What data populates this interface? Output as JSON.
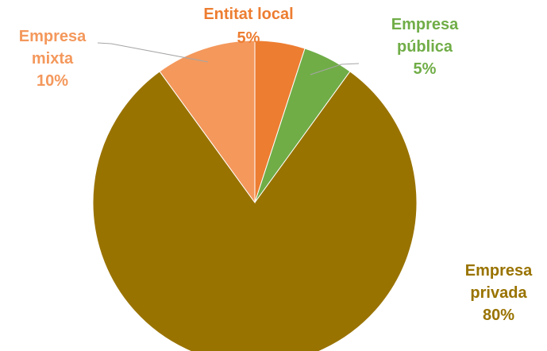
{
  "chart_data": {
    "type": "pie",
    "title": "",
    "categories": [
      "Entitat local",
      "Empresa pública",
      "Empresa privada",
      "Empresa mixta"
    ],
    "values": [
      5,
      5,
      80,
      10
    ],
    "value_labels": [
      "5%",
      "5%",
      "80%",
      "10%"
    ],
    "label_lines": [
      [
        "Entitat local"
      ],
      [
        "Empresa",
        "pública"
      ],
      [
        "Empresa",
        "privada"
      ],
      [
        "Empresa",
        "mixta"
      ]
    ],
    "colors": [
      "#ED7D31",
      "#70AD47",
      "#997300",
      "#F4985C"
    ],
    "label_colors": [
      "#ED7D31",
      "#70AD47",
      "#997300",
      "#F4985C"
    ],
    "start_angle_deg": 0,
    "direction": "clockwise",
    "legend": "none"
  }
}
